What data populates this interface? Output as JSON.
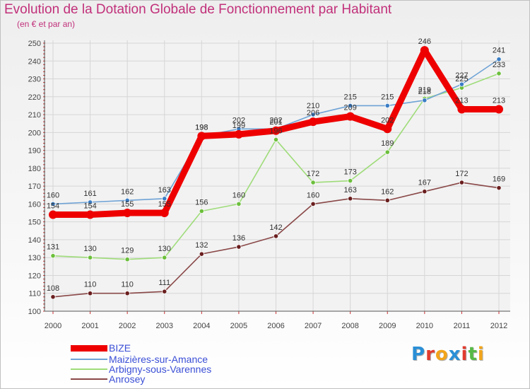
{
  "title": "Evolution de la Dotation Globale de Fonctionnement par Habitant",
  "subtitle": "(en € et par an)",
  "logo_letters": [
    {
      "ch": "P",
      "color": "#2a8fd6"
    },
    {
      "ch": "r",
      "color": "#e23b2e"
    },
    {
      "ch": "o",
      "color": "#f2a51a"
    },
    {
      "ch": "x",
      "color": "#2a8fd6"
    },
    {
      "ch": "i",
      "color": "#e23b2e"
    },
    {
      "ch": "t",
      "color": "#57b947"
    },
    {
      "ch": "i",
      "color": "#f2a51a"
    }
  ],
  "chart_data": {
    "type": "line",
    "title": "Evolution de la Dotation Globale de Fonctionnement par Habitant",
    "subtitle": "(en € et par an)",
    "xlabel": "",
    "ylabel": "",
    "ylim": [
      100,
      250
    ],
    "yticks": [
      100,
      110,
      120,
      130,
      140,
      150,
      160,
      170,
      180,
      190,
      200,
      210,
      220,
      230,
      240,
      250
    ],
    "grid": true,
    "legend_position": "bottom-left",
    "x": [
      "2000",
      "2001",
      "2002",
      "2003",
      "2004",
      "2005",
      "2006",
      "2007",
      "2008",
      "2009",
      "2010",
      "2011",
      "2012"
    ],
    "series": [
      {
        "name": "BIZE",
        "color": "#ee0000",
        "width": "thick",
        "values": [
          154,
          154,
          155,
          155,
          198,
          199,
          201,
          206,
          209,
          202,
          246,
          213,
          213
        ],
        "labels": [
          "154",
          "154",
          "155",
          "155",
          "198",
          "199",
          "201",
          "206",
          "209",
          "202",
          "246",
          "213",
          "213"
        ]
      },
      {
        "name": "Maizières-sur-Amance",
        "color": "#6fa3d6",
        "marker": "#3a7dc4",
        "width": "thin",
        "values": [
          160,
          161,
          162,
          163,
          198,
          202,
          202,
          210,
          215,
          215,
          218,
          227,
          241
        ],
        "labels": [
          "160",
          "161",
          "162",
          "163",
          "198",
          "202",
          "202",
          "210",
          "215",
          "215",
          "218",
          "227",
          "241"
        ]
      },
      {
        "name": "Arbigny-sous-Varennes",
        "color": "#9fdc7a",
        "marker": "#6cbf3c",
        "width": "thin",
        "values": [
          131,
          130,
          129,
          130,
          156,
          160,
          196,
          172,
          173,
          189,
          219,
          225,
          233
        ],
        "labels": [
          "131",
          "130",
          "129",
          "130",
          "156",
          "160",
          "196",
          "172",
          "173",
          "189",
          "219",
          "225",
          "233"
        ]
      },
      {
        "name": "Anrosey",
        "color": "#8a4848",
        "marker": "#6a1e1e",
        "width": "thin",
        "values": [
          108,
          110,
          110,
          111,
          132,
          136,
          142,
          160,
          163,
          162,
          167,
          172,
          169
        ],
        "labels": [
          "108",
          "110",
          "110",
          "111",
          "132",
          "136",
          "142",
          "160",
          "163",
          "162",
          "167",
          "172",
          "169"
        ]
      }
    ]
  }
}
